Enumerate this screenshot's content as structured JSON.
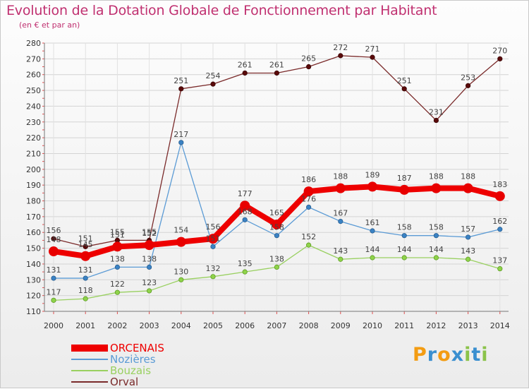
{
  "chart_data": {
    "type": "line",
    "title": "Evolution de la Dotation Globale de Fonctionnement par Habitant",
    "subtitle": "(en € et par an)",
    "xlabel": "",
    "ylabel": "",
    "ylim": [
      110,
      280
    ],
    "yticks": [
      110,
      120,
      130,
      140,
      150,
      160,
      170,
      180,
      190,
      200,
      210,
      220,
      230,
      240,
      250,
      260,
      270,
      280
    ],
    "categories": [
      "2000",
      "2001",
      "2002",
      "2003",
      "2004",
      "2005",
      "2006",
      "2007",
      "2008",
      "2009",
      "2010",
      "2011",
      "2012",
      "2013",
      "2014"
    ],
    "series": [
      {
        "name": "ORCENAIS",
        "color": "#ee0000",
        "values": [
          148,
          145,
          151,
          152,
          154,
          156,
          177,
          165,
          186,
          188,
          189,
          187,
          188,
          188,
          183
        ]
      },
      {
        "name": "Nozières",
        "color": "#5b9bd5",
        "values": [
          131,
          131,
          138,
          138,
          217,
          151,
          168,
          158,
          176,
          167,
          161,
          158,
          158,
          157,
          162
        ]
      },
      {
        "name": "Bouzais",
        "color": "#99d060",
        "values": [
          117,
          118,
          122,
          123,
          130,
          132,
          135,
          138,
          152,
          143,
          144,
          144,
          144,
          143,
          137
        ]
      },
      {
        "name": "Orval",
        "color": "#7a2a2a",
        "values": [
          156,
          151,
          155,
          155,
          251,
          254,
          261,
          261,
          265,
          272,
          271,
          251,
          231,
          253,
          270
        ]
      }
    ],
    "grid": true,
    "legend": "bottom-left"
  },
  "logo": {
    "text": "Proxiti",
    "letters": [
      {
        "ch": "P",
        "color": "#f39c12"
      },
      {
        "ch": "r",
        "color": "#3a8fd0"
      },
      {
        "ch": "o",
        "color": "#f39c12"
      },
      {
        "ch": "x",
        "color": "#3a8fd0"
      },
      {
        "ch": "i",
        "color": "#8bc34a"
      },
      {
        "ch": "t",
        "color": "#3a8fd0"
      },
      {
        "ch": "i",
        "color": "#8bc34a"
      }
    ]
  }
}
